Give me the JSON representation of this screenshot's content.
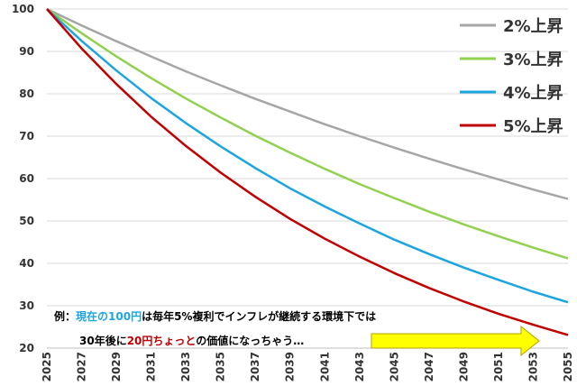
{
  "chart_data": {
    "type": "line",
    "title": "",
    "xlabel": "",
    "ylabel": "",
    "ylim": [
      20,
      100
    ],
    "xlim": [
      2025,
      2055
    ],
    "y_ticks": [
      20,
      30,
      40,
      50,
      60,
      70,
      80,
      90,
      100
    ],
    "x_ticks": [
      "2025",
      "2027",
      "2029",
      "2031",
      "2033",
      "2035",
      "2037",
      "2039",
      "2041",
      "2043",
      "2045",
      "2047",
      "2049",
      "2051",
      "2053",
      "2055"
    ],
    "grid": "horizontal",
    "legend_position": "top-right",
    "series": [
      {
        "name": "2%上昇",
        "color": "#a6a6a6",
        "rate": 0.02,
        "x": [
          2025,
          2027,
          2029,
          2031,
          2033,
          2035,
          2037,
          2039,
          2041,
          2043,
          2045,
          2047,
          2049,
          2051,
          2053,
          2055
        ],
        "values": [
          100,
          96.1,
          92.4,
          88.8,
          85.3,
          82.0,
          78.8,
          75.8,
          72.8,
          70.0,
          67.3,
          64.7,
          62.2,
          59.8,
          57.4,
          55.2
        ]
      },
      {
        "name": "3%上昇",
        "color": "#92d050",
        "rate": 0.03,
        "x": [
          2025,
          2027,
          2029,
          2031,
          2033,
          2035,
          2037,
          2039,
          2041,
          2043,
          2045,
          2047,
          2049,
          2051,
          2053,
          2055
        ],
        "values": [
          100,
          94.3,
          88.8,
          83.7,
          78.9,
          74.4,
          70.1,
          66.1,
          62.3,
          58.7,
          55.4,
          52.2,
          49.2,
          46.4,
          43.7,
          41.2
        ]
      },
      {
        "name": "4%上昇",
        "color": "#1ca5e0",
        "rate": 0.04,
        "x": [
          2025,
          2027,
          2029,
          2031,
          2033,
          2035,
          2037,
          2039,
          2041,
          2043,
          2045,
          2047,
          2049,
          2051,
          2053,
          2055
        ],
        "values": [
          100,
          92.5,
          85.5,
          79.0,
          73.1,
          67.6,
          62.5,
          57.7,
          53.4,
          49.4,
          45.6,
          42.2,
          39.0,
          36.1,
          33.3,
          30.8
        ]
      },
      {
        "name": "5%上昇",
        "color": "#c00000",
        "rate": 0.05,
        "x": [
          2025,
          2027,
          2029,
          2031,
          2033,
          2035,
          2037,
          2039,
          2041,
          2043,
          2045,
          2047,
          2049,
          2051,
          2053,
          2055
        ],
        "values": [
          100,
          90.7,
          82.3,
          74.6,
          67.7,
          61.4,
          55.7,
          50.5,
          45.8,
          41.6,
          37.7,
          34.2,
          31.0,
          28.1,
          25.5,
          23.1
        ]
      }
    ],
    "annotation": {
      "line1": [
        {
          "text": "例：",
          "color": "#000000"
        },
        {
          "text": "現在の100円",
          "color": "#1ca5e0"
        },
        {
          "text": "は毎年5%複利でインフレが継続する環境下では",
          "color": "#000000"
        }
      ],
      "line2": [
        {
          "text": "30年後に",
          "color": "#000000"
        },
        {
          "text": "20円ちょっと",
          "color": "#c00000"
        },
        {
          "text": "の価値になっちゃう…",
          "color": "#000000"
        }
      ],
      "arrow_color": "#ffff00",
      "arrow_outline": "#b0a000"
    }
  }
}
